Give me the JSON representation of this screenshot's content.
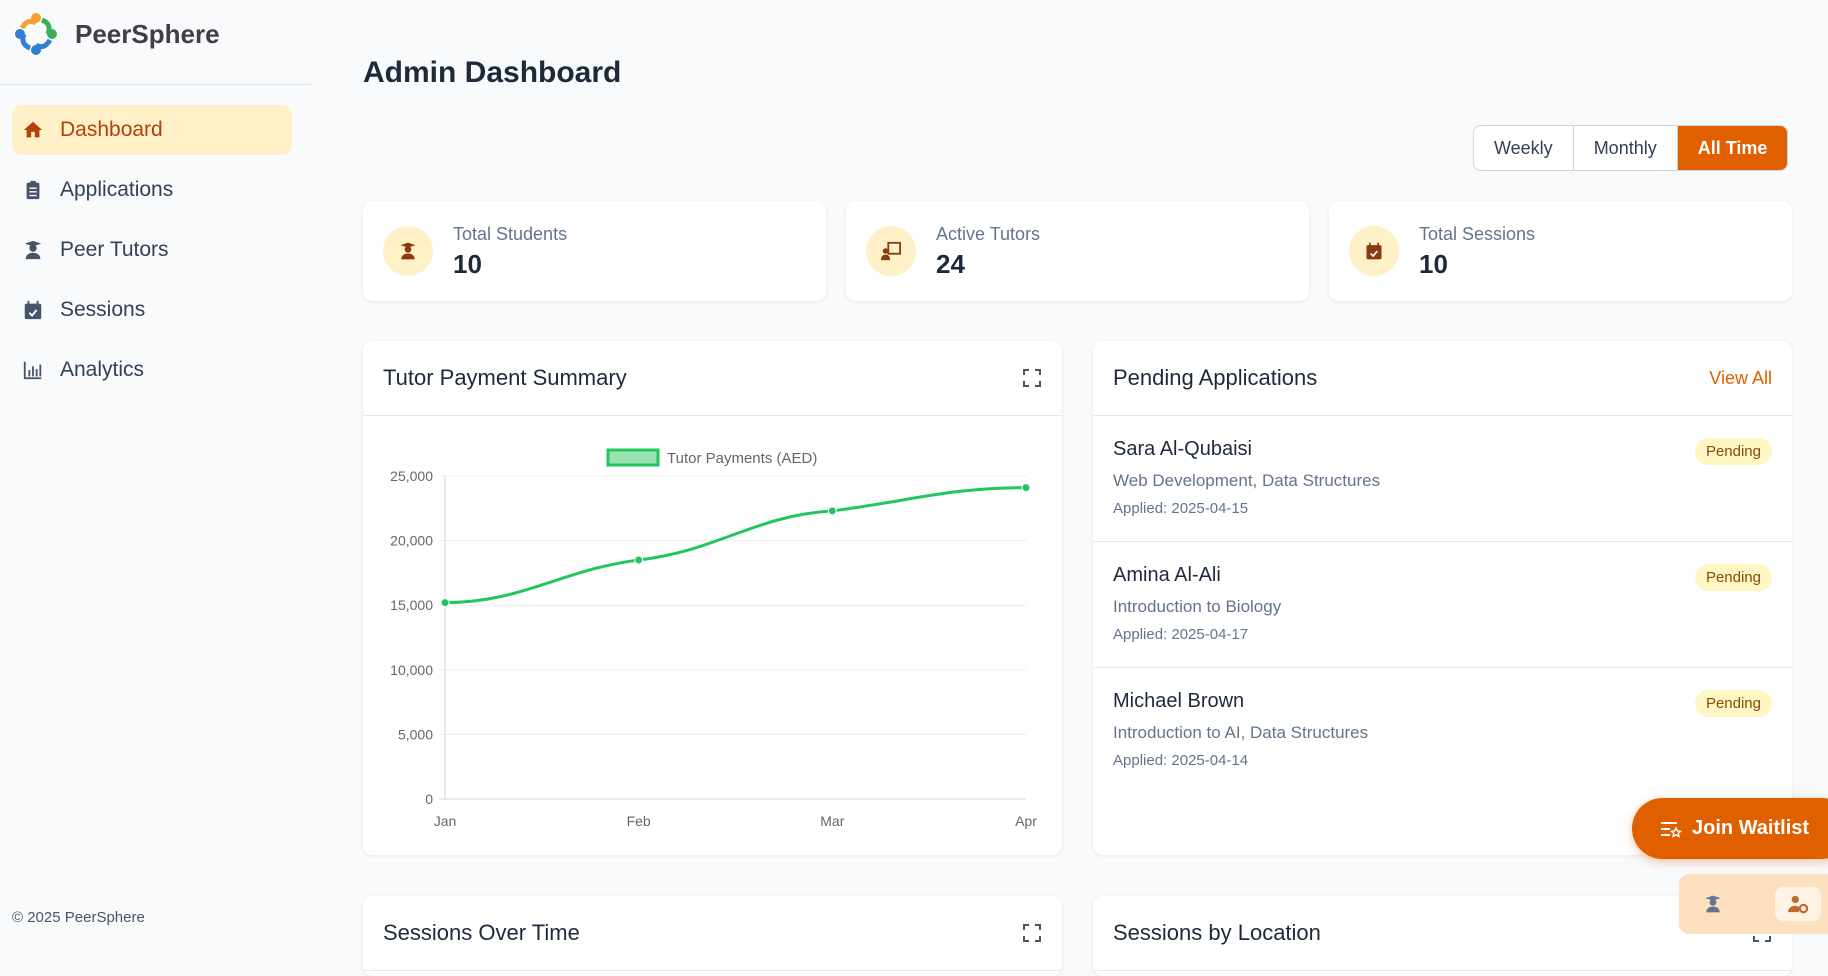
{
  "brand": {
    "name": "PeerSphere"
  },
  "sidebar": {
    "items": [
      {
        "label": "Dashboard",
        "icon": "home-icon",
        "active": true
      },
      {
        "label": "Applications",
        "icon": "clipboard-icon"
      },
      {
        "label": "Peer Tutors",
        "icon": "graduate-icon"
      },
      {
        "label": "Sessions",
        "icon": "calendar-check-icon"
      },
      {
        "label": "Analytics",
        "icon": "bar-chart-icon"
      }
    ],
    "footer": "© 2025 PeerSphere"
  },
  "page": {
    "title": "Admin Dashboard"
  },
  "range": {
    "options": [
      "Weekly",
      "Monthly",
      "All Time"
    ],
    "selected": "All Time"
  },
  "stats": [
    {
      "label": "Total Students",
      "value": "10",
      "icon": "graduate-icon"
    },
    {
      "label": "Active Tutors",
      "value": "24",
      "icon": "chalkboard-teacher-icon"
    },
    {
      "label": "Total Sessions",
      "value": "10",
      "icon": "calendar-check-icon"
    }
  ],
  "payment_card": {
    "title": "Tutor Payment Summary"
  },
  "pending": {
    "title": "Pending Applications",
    "view_all": "View All",
    "items": [
      {
        "name": "Sara Al-Qubaisi",
        "subjects": "Web Development, Data Structures",
        "applied": "Applied: 2025-04-15",
        "status": "Pending"
      },
      {
        "name": "Amina Al-Ali",
        "subjects": "Introduction to Biology",
        "applied": "Applied: 2025-04-17",
        "status": "Pending"
      },
      {
        "name": "Michael Brown",
        "subjects": "Introduction to AI, Data Structures",
        "applied": "Applied: 2025-04-14",
        "status": "Pending"
      }
    ]
  },
  "lower": {
    "sessions_title": "Sessions Over Time",
    "location_title": "Sessions by Location"
  },
  "waitlist": {
    "label": "Join Waitlist"
  },
  "colors": {
    "accent": "#e06000",
    "line": "#22c55e",
    "badge_bg": "#fef6c3"
  },
  "chart_data": {
    "type": "line",
    "categories": [
      "Jan",
      "Feb",
      "Mar",
      "Apr"
    ],
    "series": [
      {
        "name": "Tutor Payments (AED)",
        "values": [
          15200,
          18500,
          22300,
          24100
        ]
      }
    ],
    "yticks": [
      "0",
      "5,000",
      "10,000",
      "15,000",
      "20,000",
      "25,000"
    ],
    "ylim": [
      0,
      25000
    ],
    "grid": true,
    "legend": "top"
  }
}
